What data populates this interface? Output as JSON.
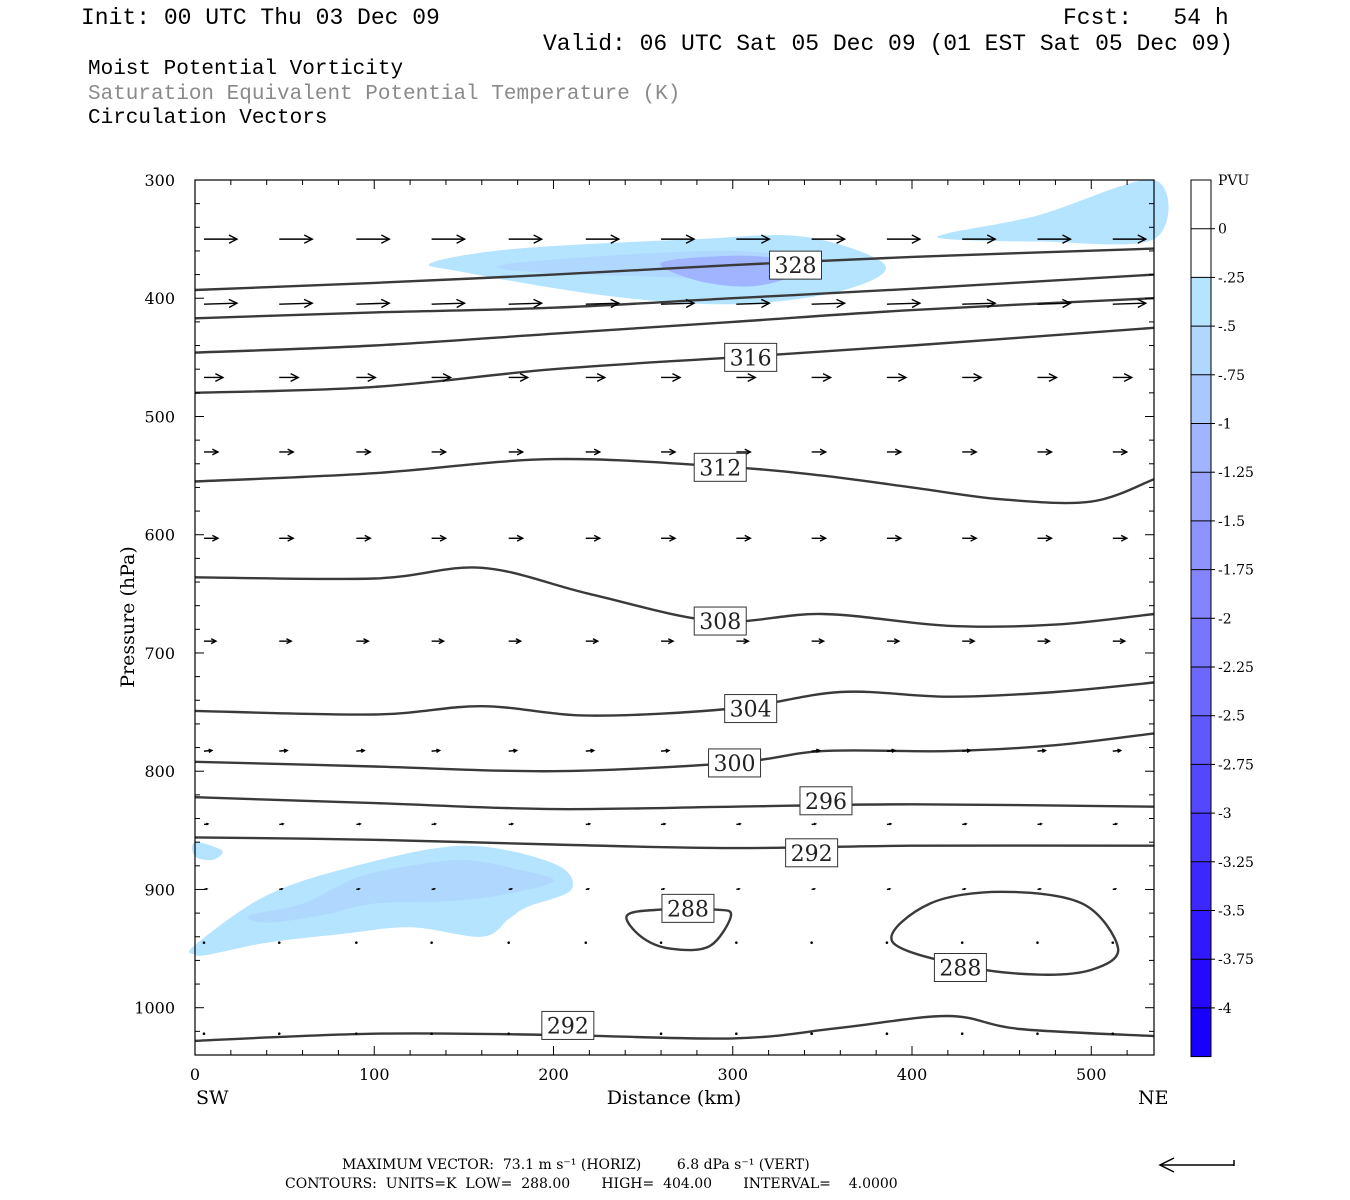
{
  "header": {
    "init": "Init: 00 UTC Thu 03 Dec 09",
    "fcst": "Fcst:   54 h",
    "valid": "Valid: 06 UTC Sat 05 Dec 09 (01 EST Sat 05 Dec 09)"
  },
  "titles": {
    "line1": "Moist Potential Vorticity",
    "line2": "Saturation Equivalent Potential Temperature (K)",
    "line3": "Circulation Vectors"
  },
  "footer": {
    "line1": "MAXIMUM VECTOR:  73.1 m s⁻¹ (HORIZ)        6.8 dPa s⁻¹ (VERT)",
    "line2": "CONTOURS:  UNITS=K  LOW=  288.00       HIGH=  404.00       INTERVAL=    4.0000"
  },
  "colors": {
    "contour": "#3a3a3a",
    "pv_shades": [
      "#ffffff",
      "#ffffff",
      "#b4e4ff",
      "#b0d8ff",
      "#a8c8ff",
      "#a0b4ff",
      "#98a4ff",
      "#8e94ff",
      "#8484ff",
      "#7876ff",
      "#6c68ff",
      "#6058ff",
      "#5448ff",
      "#4838ff",
      "#3c28ff",
      "#3018ff",
      "#2408ff",
      "#1800ff"
    ]
  },
  "chart_data": {
    "type": "heatmap",
    "description_axes": {
      "xlabel": "Distance (km)",
      "ylabel": "Pressure (hPa)",
      "xlim": [
        0,
        535
      ],
      "ylim": [
        1040,
        300
      ],
      "x_ticks": [
        0,
        100,
        200,
        300,
        400,
        500
      ],
      "y_ticks": [
        300,
        400,
        500,
        600,
        700,
        800,
        900,
        1000
      ],
      "x_end_labels": [
        "SW",
        "NE"
      ]
    },
    "colorbar": {
      "title": "PVU",
      "labels": [
        "0",
        "-.25",
        "-.5",
        "-.75",
        "-1",
        "-1.25",
        "-1.5",
        "-1.75",
        "-2",
        "-2.25",
        "-2.5",
        "-2.75",
        "-3",
        "-3.25",
        "-3.5",
        "-3.75",
        "-4"
      ]
    },
    "contour_labels": [
      {
        "value": "328",
        "x": 335,
        "p": 372
      },
      {
        "value": "316",
        "x": 310,
        "p": 450
      },
      {
        "value": "312",
        "x": 293,
        "p": 543
      },
      {
        "value": "308",
        "x": 293,
        "p": 673
      },
      {
        "value": "304",
        "x": 310,
        "p": 747
      },
      {
        "value": "300",
        "x": 301,
        "p": 793
      },
      {
        "value": "296",
        "x": 352,
        "p": 825
      },
      {
        "value": "292",
        "x": 344,
        "p": 869
      },
      {
        "value": "288",
        "x": 275,
        "p": 916
      },
      {
        "value": "288",
        "x": 427,
        "p": 966
      },
      {
        "value": "292",
        "x": 208,
        "p": 1015
      }
    ],
    "contours": [
      {
        "value": 328,
        "x": [
          0,
          100,
          200,
          300,
          400,
          535
        ],
        "p": [
          393,
          387,
          380,
          372,
          365,
          358
        ]
      },
      {
        "value": 324,
        "x": [
          0,
          100,
          200,
          300,
          400,
          535
        ],
        "p": [
          417,
          412,
          408,
          400,
          392,
          380
        ]
      },
      {
        "value": 320,
        "x": [
          0,
          100,
          200,
          300,
          400,
          535
        ],
        "p": [
          446,
          440,
          430,
          420,
          410,
          400
        ]
      },
      {
        "value": 316,
        "x": [
          0,
          100,
          200,
          300,
          400,
          535
        ],
        "p": [
          480,
          475,
          460,
          450,
          440,
          425
        ]
      },
      {
        "value": 312,
        "x": [
          0,
          100,
          200,
          300,
          350,
          400,
          450,
          500,
          535
        ],
        "p": [
          555,
          548,
          536,
          543,
          550,
          560,
          570,
          572,
          553
        ]
      },
      {
        "value": 308,
        "x": [
          0,
          100,
          160,
          220,
          290,
          350,
          420,
          480,
          535
        ],
        "p": [
          636,
          637,
          628,
          650,
          673,
          667,
          677,
          676,
          667
        ]
      },
      {
        "value": 304,
        "x": [
          0,
          100,
          160,
          220,
          300,
          360,
          420,
          480,
          535
        ],
        "p": [
          749,
          752,
          745,
          753,
          747,
          733,
          737,
          733,
          725
        ]
      },
      {
        "value": 300,
        "x": [
          0,
          100,
          200,
          300,
          350,
          420,
          480,
          535
        ],
        "p": [
          792,
          796,
          800,
          793,
          783,
          783,
          778,
          768
        ]
      },
      {
        "value": 296,
        "x": [
          0,
          100,
          200,
          300,
          400,
          535
        ],
        "p": [
          822,
          827,
          832,
          830,
          828,
          830
        ]
      },
      {
        "value": 292,
        "x": [
          0,
          100,
          200,
          300,
          400,
          535
        ],
        "p": [
          856,
          858,
          862,
          865,
          863,
          863
        ]
      },
      {
        "value": 292,
        "x": [
          0,
          100,
          200,
          300,
          360,
          420,
          460,
          535
        ],
        "p": [
          1028,
          1022,
          1023,
          1026,
          1017,
          1007,
          1018,
          1024
        ]
      }
    ],
    "closed_contours": [
      {
        "value": 288,
        "x": [
          241,
          260,
          290,
          299,
          287,
          265,
          249,
          241
        ],
        "p": [
          922,
          917,
          917,
          922,
          948,
          950,
          940,
          922
        ]
      },
      {
        "value": 288,
        "x": [
          389,
          410,
          450,
          495,
          515,
          500,
          470,
          430,
          389
        ],
        "p": [
          944,
          912,
          902,
          912,
          950,
          968,
          972,
          965,
          944
        ]
      }
    ],
    "pv_regions": [
      {
        "level": -0.25,
        "x": [
          132,
          180,
          280,
          340,
          385,
          360,
          300,
          230,
          150
        ],
        "p": [
          370,
          358,
          350,
          348,
          372,
          394,
          405,
          398,
          378
        ]
      },
      {
        "level": -0.5,
        "x": [
          170,
          230,
          300,
          340,
          320,
          260,
          190
        ],
        "p": [
          372,
          364,
          360,
          368,
          385,
          382,
          378
        ]
      },
      {
        "level": -1.0,
        "x": [
          260,
          300,
          330,
          335,
          310,
          280
        ],
        "p": [
          370,
          364,
          368,
          380,
          390,
          385
        ]
      },
      {
        "level": -0.25,
        "x": [
          420,
          470,
          535,
          535,
          470,
          420
        ],
        "p": [
          345,
          330,
          300,
          350,
          352,
          350
        ]
      },
      {
        "level": -0.25,
        "x": [
          0,
          40,
          90,
          150,
          200,
          210,
          185,
          175,
          160,
          120,
          80,
          40,
          8,
          0
        ],
        "p": [
          947,
          905,
          880,
          863,
          878,
          900,
          915,
          925,
          940,
          932,
          938,
          945,
          955,
          955
        ]
      },
      {
        "level": -0.5,
        "x": [
          30,
          60,
          90,
          120,
          150,
          180,
          200,
          170,
          140,
          100,
          70,
          40
        ],
        "p": [
          922,
          912,
          890,
          880,
          875,
          883,
          893,
          905,
          910,
          912,
          922,
          928
        ]
      },
      {
        "level": -0.25,
        "x": [
          0,
          15,
          10,
          0
        ],
        "p": [
          860,
          867,
          875,
          872
        ]
      }
    ],
    "vector_rows": [
      {
        "p": 350,
        "x": [
          5,
          47,
          90,
          132,
          175,
          218,
          260,
          302,
          344,
          386,
          428,
          470,
          512
        ],
        "u": 1,
        "v": 0,
        "len": 33
      },
      {
        "p": 405,
        "x": [
          5,
          47,
          90,
          132,
          175,
          218,
          260,
          302,
          344,
          386,
          428,
          470,
          512
        ],
        "u": 1,
        "v": -0.03,
        "len": 33
      },
      {
        "p": 467,
        "x": [
          5,
          47,
          90,
          132,
          175,
          218,
          260,
          302,
          344,
          386,
          428,
          470,
          512
        ],
        "u": 1,
        "v": 0,
        "len": 19
      },
      {
        "p": 530,
        "x": [
          5,
          47,
          90,
          132,
          175,
          218,
          260,
          302,
          344,
          386,
          428,
          470,
          512
        ],
        "u": 1,
        "v": 0,
        "len": 14
      },
      {
        "p": 603,
        "x": [
          5,
          47,
          90,
          132,
          175,
          218,
          260,
          302,
          344,
          386,
          428,
          470,
          512
        ],
        "u": 1,
        "v": 0,
        "len": 14
      },
      {
        "p": 690,
        "x": [
          5,
          47,
          90,
          132,
          175,
          218,
          260,
          302,
          344,
          386,
          428,
          470,
          512
        ],
        "u": 1,
        "v": 0,
        "len": 12
      },
      {
        "p": 783,
        "x": [
          5,
          47,
          90,
          132,
          175,
          218,
          260,
          302,
          344,
          386,
          428,
          470,
          512
        ],
        "u": 1,
        "v": -0.08,
        "len": 8
      },
      {
        "p": 845,
        "x": [
          5,
          47,
          90,
          132,
          175,
          218,
          260,
          302,
          344,
          386,
          428,
          470,
          512
        ],
        "u": 1,
        "v": -0.12,
        "len": 4
      },
      {
        "p": 900,
        "x": [
          5,
          47,
          90,
          132,
          175,
          218,
          260,
          302,
          344,
          386,
          428,
          470,
          512
        ],
        "u": 1,
        "v": -0.2,
        "len": 3
      },
      {
        "p": 945,
        "x": [
          5,
          47,
          90,
          132,
          175,
          218,
          260,
          302,
          344,
          386,
          428,
          470,
          512
        ],
        "u": 1,
        "v": -0.2,
        "len": 2
      },
      {
        "p": 1022,
        "x": [
          5,
          47,
          90,
          132,
          175,
          218,
          260,
          302,
          344,
          386,
          428,
          470,
          512
        ],
        "u": 1,
        "v": -0.2,
        "len": 2
      }
    ]
  }
}
